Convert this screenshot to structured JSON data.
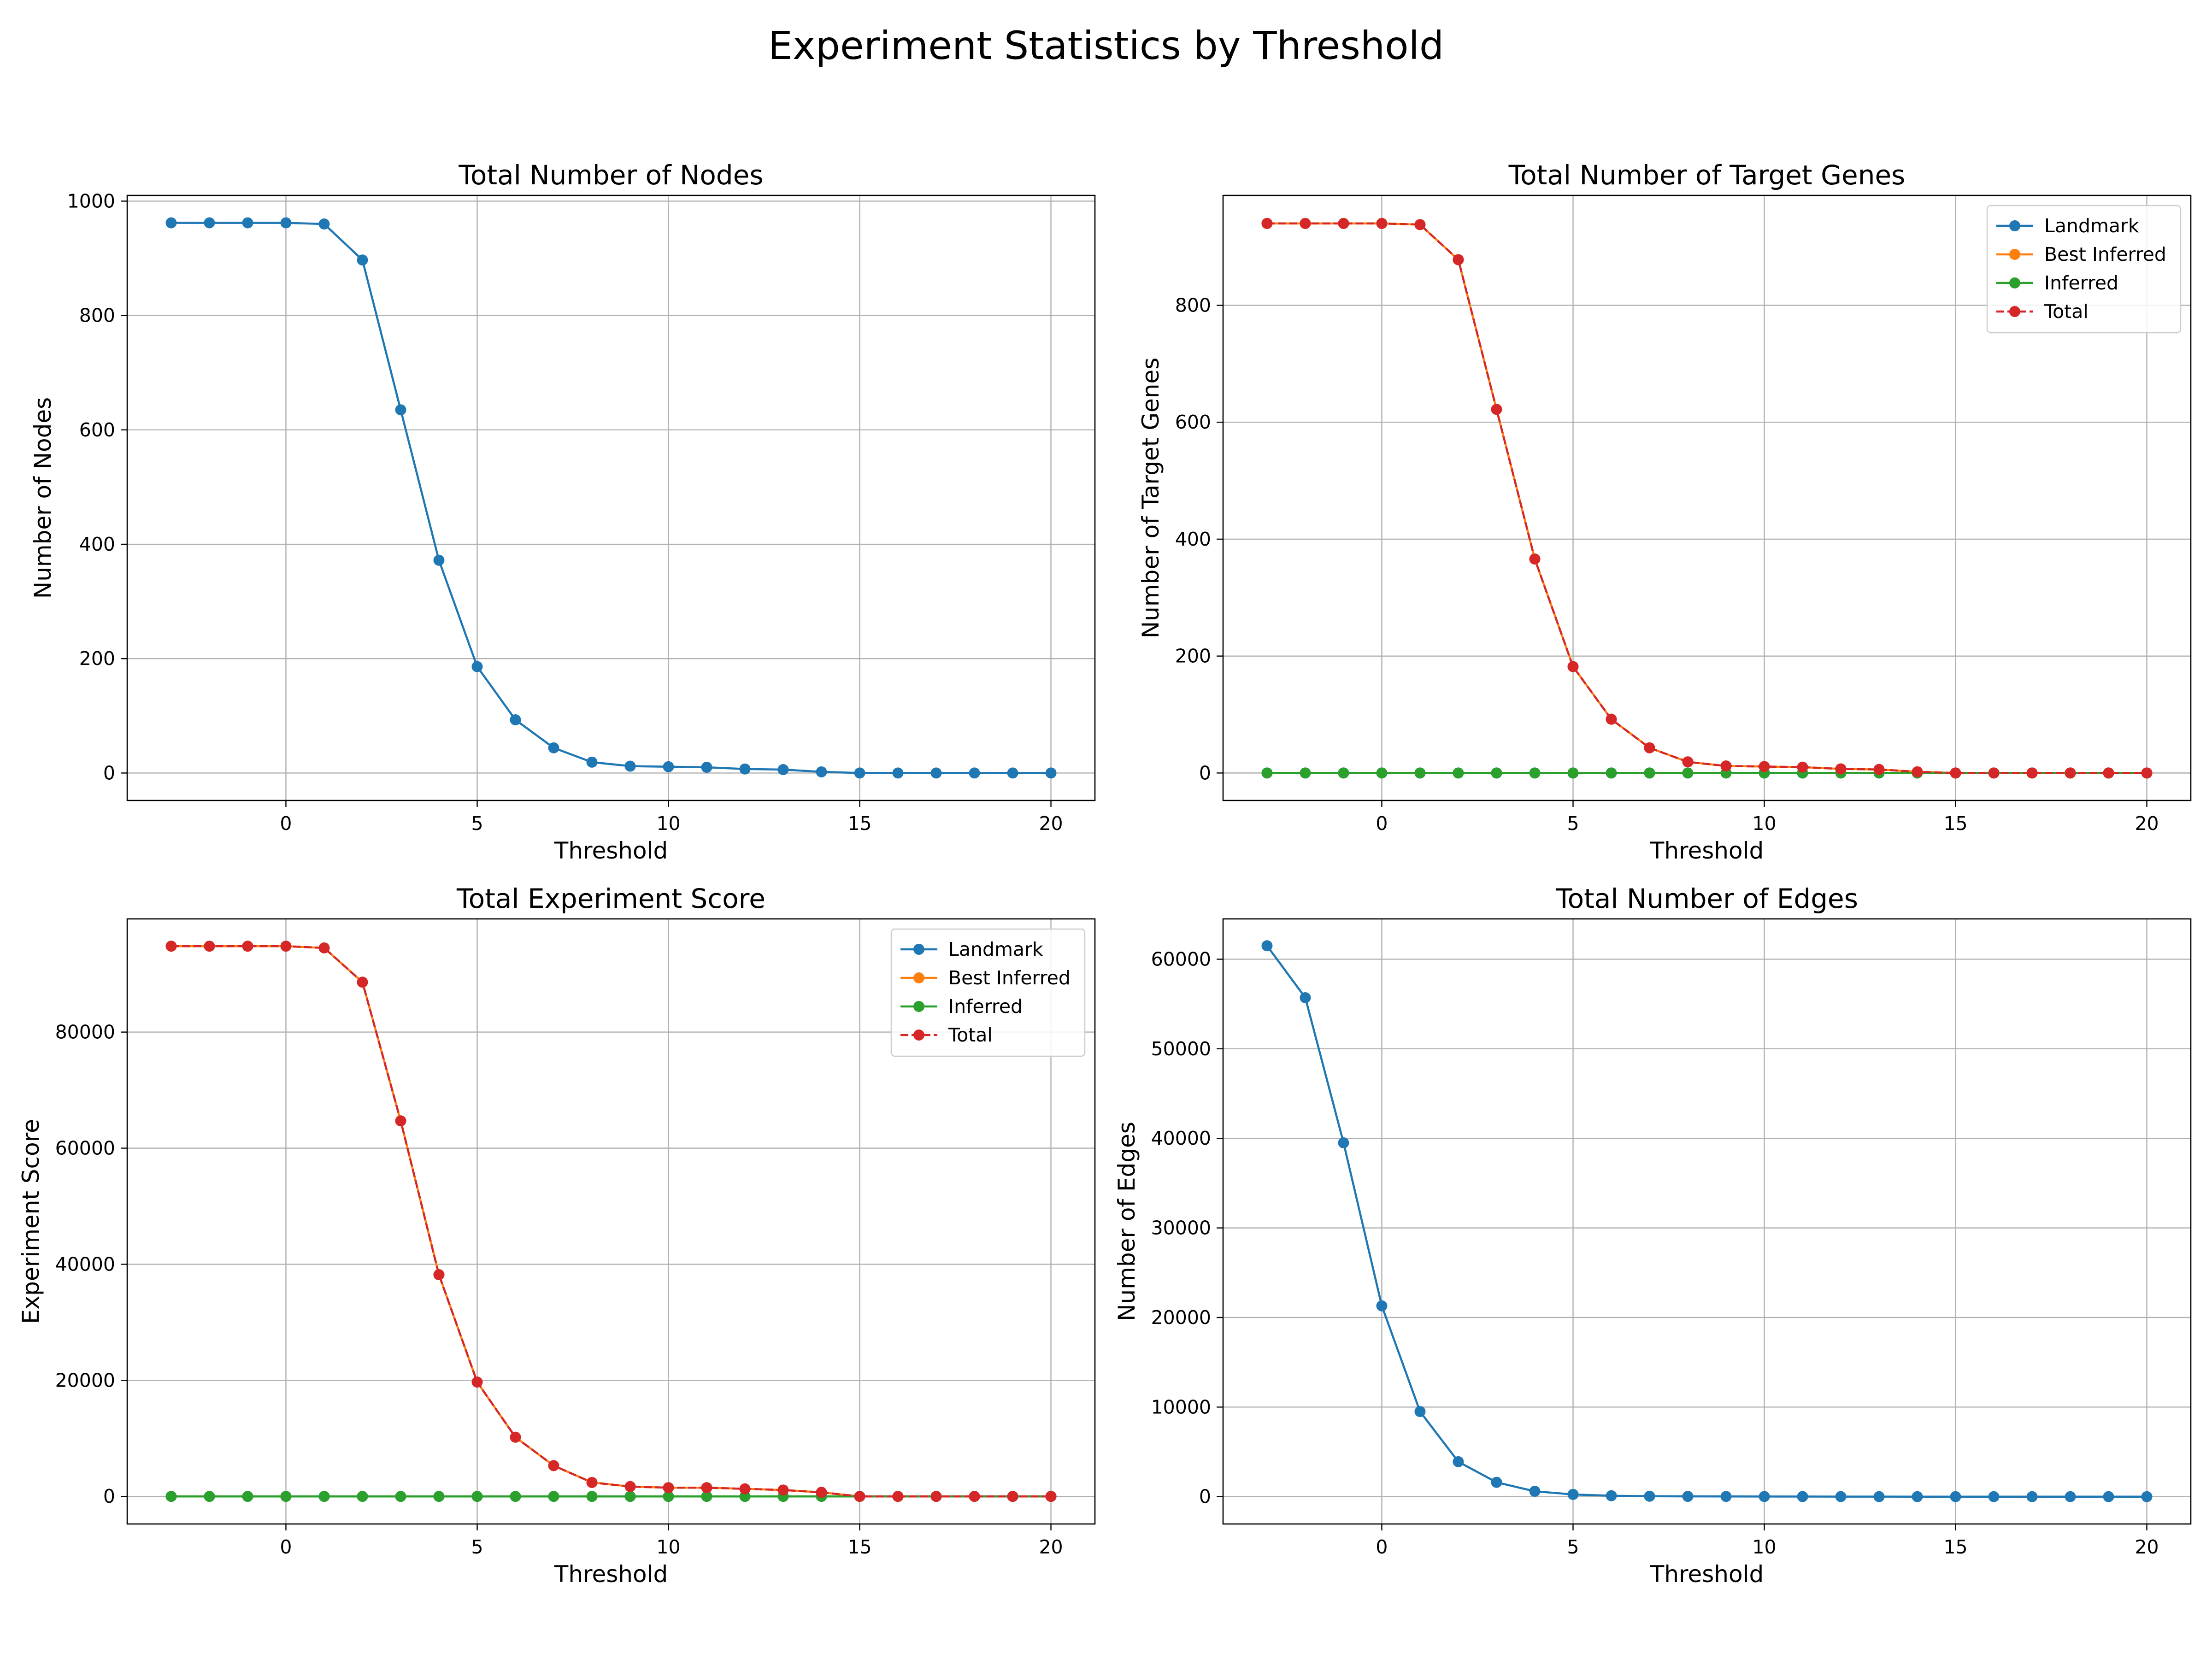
{
  "figure": {
    "suptitle": "Experiment Statistics by Threshold"
  },
  "colors": {
    "landmark": "#1f77b4",
    "best_inferred": "#ff7f0e",
    "inferred": "#2ca02c",
    "total": "#d62728",
    "grid": "#b0b0b0"
  },
  "chart_data": [
    {
      "type": "line",
      "title": "Total Number of Nodes",
      "xlabel": "Threshold",
      "ylabel": "Number of Nodes",
      "xlim": [
        -4.15,
        21.15
      ],
      "ylim": [
        -48,
        1010
      ],
      "xticks": [
        0,
        5,
        10,
        15,
        20
      ],
      "yticks": [
        0,
        200,
        400,
        600,
        800,
        1000
      ],
      "grid": true,
      "legend": null,
      "x": [
        -3,
        -2,
        -1,
        0,
        1,
        2,
        3,
        4,
        5,
        6,
        7,
        8,
        9,
        10,
        11,
        12,
        13,
        14,
        15,
        16,
        17,
        18,
        19,
        20
      ],
      "series": [
        {
          "key": "landmark",
          "style": "solid",
          "values": [
            962,
            962,
            962,
            962,
            960,
            897,
            635,
            372,
            186,
            93,
            44,
            19,
            12,
            11,
            10,
            7,
            6,
            2,
            0,
            0,
            0,
            0,
            0,
            0
          ]
        }
      ]
    },
    {
      "type": "line",
      "title": "Total Number of Target Genes",
      "xlabel": "Threshold",
      "ylabel": "Number of Target Genes",
      "xlim": [
        -4.15,
        21.15
      ],
      "ylim": [
        -47,
        988
      ],
      "xticks": [
        0,
        5,
        10,
        15,
        20
      ],
      "yticks": [
        0,
        200,
        400,
        600,
        800
      ],
      "grid": true,
      "legend": "top-right",
      "x": [
        -3,
        -2,
        -1,
        0,
        1,
        2,
        3,
        4,
        5,
        6,
        7,
        8,
        9,
        10,
        11,
        12,
        13,
        14,
        15,
        16,
        17,
        18,
        19,
        20
      ],
      "series": [
        {
          "key": "landmark",
          "name": "Landmark",
          "style": "solid",
          "values": [
            0,
            0,
            0,
            0,
            0,
            0,
            0,
            0,
            0,
            0,
            0,
            0,
            0,
            0,
            0,
            0,
            0,
            0,
            0,
            0,
            0,
            0,
            0,
            0
          ]
        },
        {
          "key": "best_inferred",
          "name": "Best Inferred",
          "style": "solid",
          "values": [
            940,
            940,
            940,
            940,
            938,
            878,
            622,
            366,
            182,
            92,
            43,
            19,
            12,
            11,
            10,
            7,
            6,
            2,
            0,
            0,
            0,
            0,
            0,
            0
          ]
        },
        {
          "key": "inferred",
          "name": "Inferred",
          "style": "solid",
          "values": [
            0,
            0,
            0,
            0,
            0,
            0,
            0,
            0,
            0,
            0,
            0,
            0,
            0,
            0,
            0,
            0,
            0,
            0,
            0,
            0,
            0,
            0,
            0,
            0
          ]
        },
        {
          "key": "total",
          "name": "Total",
          "style": "dashed",
          "values": [
            940,
            940,
            940,
            940,
            938,
            878,
            622,
            366,
            182,
            92,
            43,
            19,
            12,
            11,
            10,
            7,
            6,
            2,
            0,
            0,
            0,
            0,
            0,
            0
          ]
        }
      ]
    },
    {
      "type": "line",
      "title": "Total Experiment Score",
      "xlabel": "Threshold",
      "ylabel": "Experiment Score",
      "xlim": [
        -4.15,
        21.15
      ],
      "ylim": [
        -4750,
        99500
      ],
      "xticks": [
        0,
        5,
        10,
        15,
        20
      ],
      "yticks": [
        0,
        20000,
        40000,
        60000,
        80000
      ],
      "grid": true,
      "legend": "top-right",
      "x": [
        -3,
        -2,
        -1,
        0,
        1,
        2,
        3,
        4,
        5,
        6,
        7,
        8,
        9,
        10,
        11,
        12,
        13,
        14,
        15,
        16,
        17,
        18,
        19,
        20
      ],
      "series": [
        {
          "key": "landmark",
          "name": "Landmark",
          "style": "solid",
          "values": [
            0,
            0,
            0,
            0,
            0,
            0,
            0,
            0,
            0,
            0,
            0,
            0,
            0,
            0,
            0,
            0,
            0,
            0,
            0,
            0,
            0,
            0,
            0,
            0
          ]
        },
        {
          "key": "best_inferred",
          "name": "Best Inferred",
          "style": "solid",
          "values": [
            94800,
            94800,
            94800,
            94800,
            94500,
            88600,
            64700,
            38200,
            19700,
            10200,
            5300,
            2400,
            1700,
            1500,
            1500,
            1300,
            1100,
            700,
            0,
            0,
            0,
            0,
            0,
            0
          ]
        },
        {
          "key": "inferred",
          "name": "Inferred",
          "style": "solid",
          "values": [
            0,
            0,
            0,
            0,
            0,
            0,
            0,
            0,
            0,
            0,
            0,
            0,
            0,
            0,
            0,
            0,
            0,
            0,
            0,
            0,
            0,
            0,
            0,
            0
          ]
        },
        {
          "key": "total",
          "name": "Total",
          "style": "dashed",
          "values": [
            94800,
            94800,
            94800,
            94800,
            94500,
            88600,
            64700,
            38200,
            19700,
            10200,
            5300,
            2400,
            1700,
            1500,
            1500,
            1300,
            1100,
            700,
            0,
            0,
            0,
            0,
            0,
            0
          ]
        }
      ]
    },
    {
      "type": "line",
      "title": "Total Number of Edges",
      "xlabel": "Threshold",
      "ylabel": "Number of Edges",
      "xlim": [
        -4.15,
        21.15
      ],
      "ylim": [
        -3050,
        64500
      ],
      "xticks": [
        0,
        5,
        10,
        15,
        20
      ],
      "yticks": [
        0,
        10000,
        20000,
        30000,
        40000,
        50000,
        60000
      ],
      "grid": true,
      "legend": null,
      "x": [
        -3,
        -2,
        -1,
        0,
        1,
        2,
        3,
        4,
        5,
        6,
        7,
        8,
        9,
        10,
        11,
        12,
        13,
        14,
        15,
        16,
        17,
        18,
        19,
        20
      ],
      "series": [
        {
          "key": "landmark",
          "style": "solid",
          "values": [
            61500,
            55700,
            39500,
            21300,
            9500,
            3900,
            1600,
            600,
            250,
            100,
            50,
            30,
            20,
            15,
            10,
            8,
            5,
            2,
            0,
            0,
            0,
            0,
            0,
            0
          ]
        }
      ]
    }
  ]
}
